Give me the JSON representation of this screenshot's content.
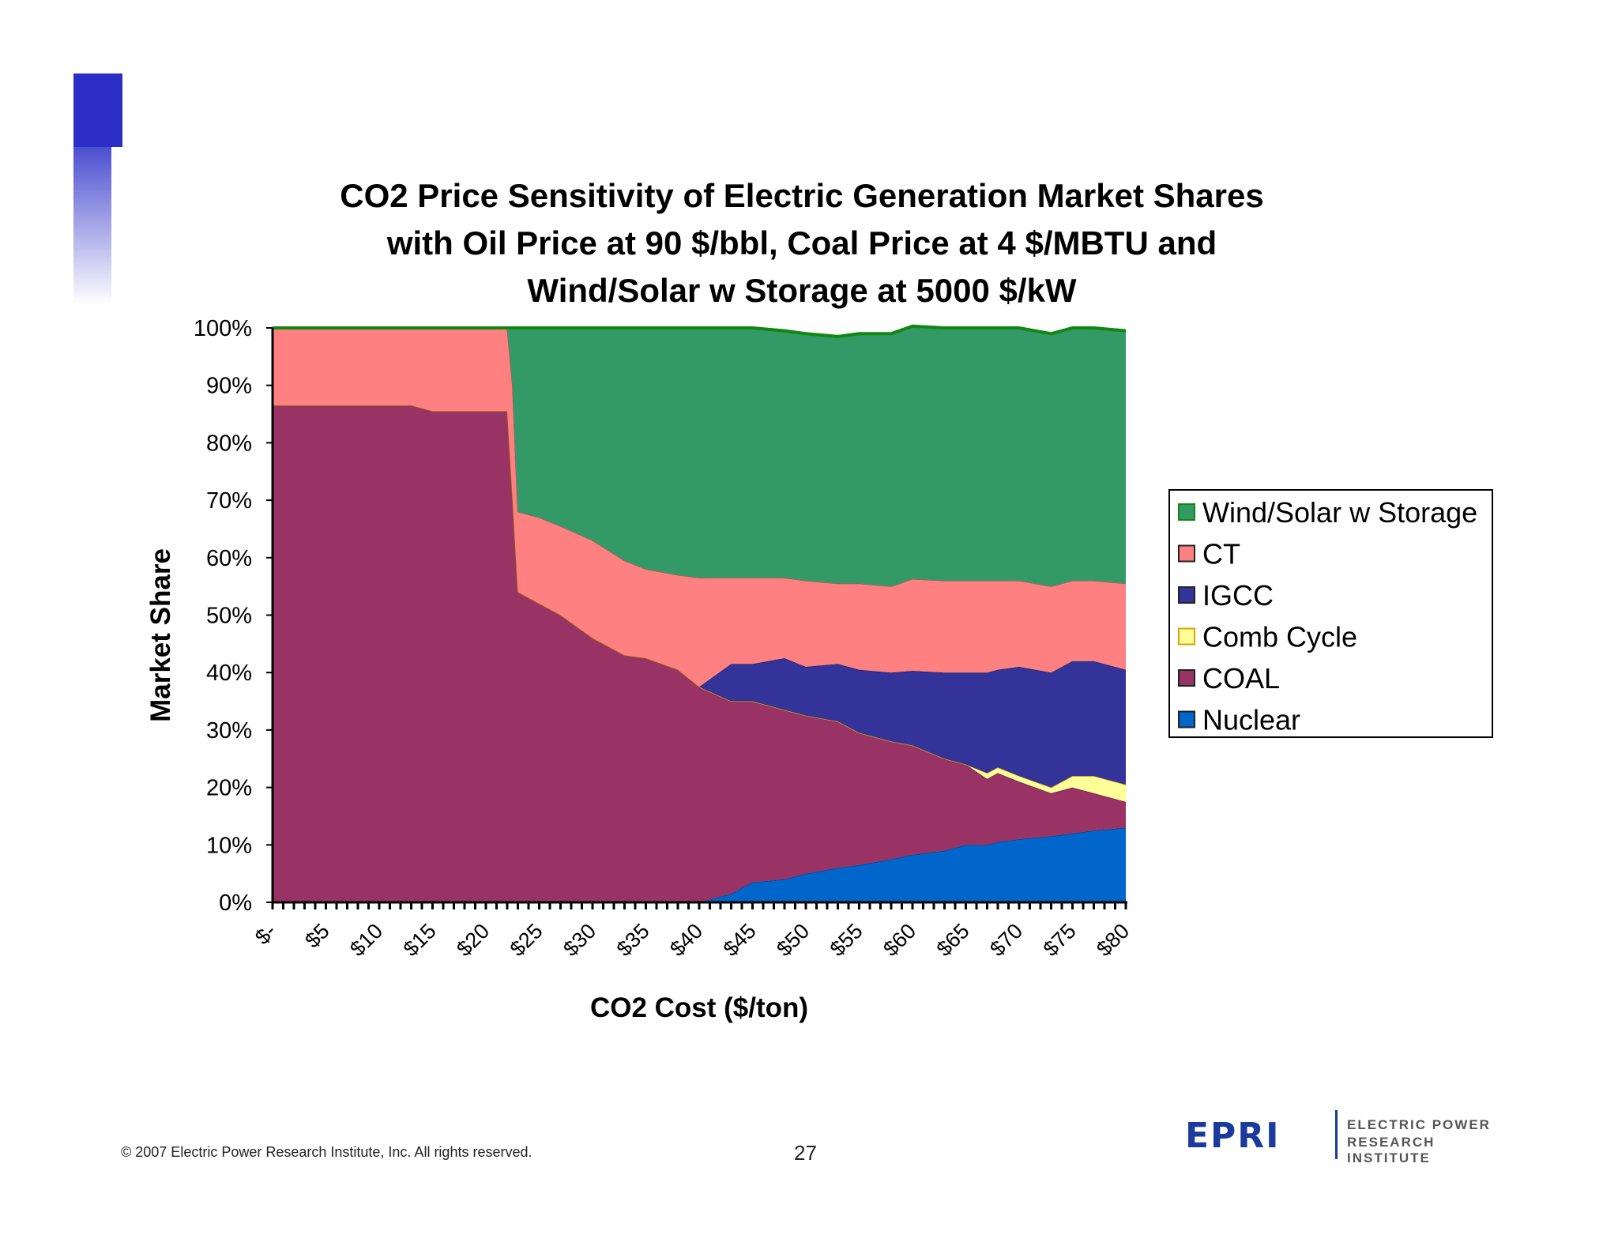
{
  "chart_data": {
    "type": "area",
    "stacked": true,
    "title": [
      "CO2 Price Sensitivity of Electric Generation Market Shares",
      "with Oil Price at 90 $/bbl, Coal Price at 4 $/MBTU and",
      "Wind/Solar w Storage at 5000 $/kW"
    ],
    "xlabel": "CO2 Cost ($/ton)",
    "ylabel": "Market Share",
    "xlim": [
      0,
      80
    ],
    "ylim": [
      0,
      100
    ],
    "y_ticks": [
      "0%",
      "10%",
      "20%",
      "30%",
      "40%",
      "50%",
      "60%",
      "70%",
      "80%",
      "90%",
      "100%"
    ],
    "x_ticks": [
      "$-",
      "$5",
      "$10",
      "$15",
      "$20",
      "$25",
      "$30",
      "$35",
      "$40",
      "$45",
      "$50",
      "$55",
      "$60",
      "$65",
      "$70",
      "$75",
      "$80"
    ],
    "x": [
      0,
      5,
      10,
      13,
      14,
      15,
      20,
      22,
      22.5,
      23,
      25,
      27,
      30,
      33,
      35,
      38,
      40,
      43,
      45,
      48,
      50,
      53,
      55,
      58,
      60,
      63,
      65,
      67,
      68,
      70,
      73,
      75,
      77,
      80
    ],
    "legend_position": "right",
    "series": [
      {
        "name": "Nuclear",
        "color": "#0066cc",
        "values": [
          0,
          0,
          0,
          0,
          0,
          0,
          0,
          0,
          0,
          0,
          0,
          0,
          0,
          0,
          0,
          0,
          0,
          1.5,
          3.5,
          4,
          5,
          6,
          6.5,
          7.5,
          8.3,
          9,
          10,
          10,
          10.5,
          11,
          11.5,
          12,
          12.5,
          13
        ]
      },
      {
        "name": "COAL",
        "color": "#993366",
        "values": [
          86.5,
          86.5,
          86.5,
          86.5,
          86,
          85.5,
          85.5,
          85.5,
          70,
          54,
          52,
          50,
          46,
          43,
          42.5,
          40.5,
          37.5,
          33.5,
          31.5,
          29.5,
          27.5,
          25.5,
          23,
          20.5,
          19,
          16,
          14,
          11.5,
          12,
          10,
          7.5,
          8,
          6.5,
          4.5
        ]
      },
      {
        "name": "Comb Cycle",
        "color": "#ffff99",
        "values": [
          0,
          0,
          0,
          0,
          0,
          0,
          0,
          0,
          0,
          0,
          0,
          0,
          0,
          0,
          0,
          0,
          0,
          0,
          0,
          0,
          0,
          0,
          0,
          0,
          0,
          0,
          0,
          1,
          1,
          1,
          1,
          2,
          3,
          3
        ]
      },
      {
        "name": "IGCC",
        "color": "#333399",
        "values": [
          0,
          0,
          0,
          0,
          0,
          0,
          0,
          0,
          0,
          0,
          0,
          0,
          0,
          0,
          0,
          0,
          0,
          6.5,
          6.5,
          9,
          8.5,
          10,
          11,
          12,
          13,
          15,
          16,
          17.5,
          17,
          19,
          20,
          20,
          20,
          20
        ]
      },
      {
        "name": "CT",
        "color": "#ff8080",
        "values": [
          13.5,
          13.5,
          13.5,
          13.5,
          14,
          14.5,
          14.5,
          14.5,
          20,
          14,
          15,
          15.5,
          17,
          16.5,
          15.5,
          16.5,
          19,
          15,
          15,
          14,
          15,
          14,
          15,
          15,
          16,
          16,
          16,
          16,
          15.5,
          15,
          15,
          14,
          14,
          15
        ]
      },
      {
        "name": "Wind/Solar w Storage",
        "color": "#339966",
        "values": [
          0,
          0,
          0,
          0,
          0,
          0,
          0,
          0,
          10,
          32,
          33,
          34.5,
          37,
          40.5,
          42,
          43,
          43.5,
          43.5,
          43.5,
          43,
          43,
          43,
          43.5,
          44,
          44,
          44,
          44,
          44,
          44,
          44,
          44,
          44,
          44,
          44
        ]
      }
    ]
  },
  "legend_items": [
    "Wind/Solar w Storage",
    "CT",
    "IGCC",
    "Comb Cycle",
    "COAL",
    "Nuclear"
  ],
  "footer": {
    "copyright": "© 2007 Electric Power Research Institute, Inc. All rights reserved.",
    "page_number": "27"
  },
  "logo": {
    "mark": "EPRI",
    "line1": "ELECTRIC POWER",
    "line2": "RESEARCH INSTITUTE"
  },
  "colors": {
    "accent": "#2b2fc8",
    "logo": "#1a3a9c"
  }
}
